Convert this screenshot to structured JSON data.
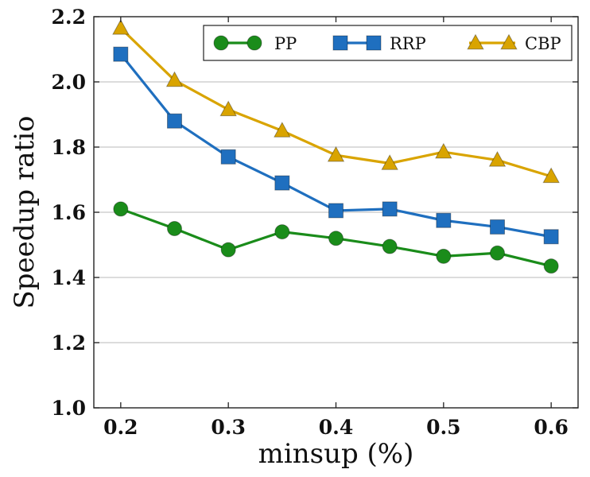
{
  "chart_data": {
    "type": "line",
    "title": "",
    "xlabel": "minsup (%)",
    "ylabel": "Speedup ratio",
    "x": [
      0.2,
      0.25,
      0.3,
      0.35,
      0.4,
      0.45,
      0.5,
      0.55,
      0.6
    ],
    "xlim": [
      0.175,
      0.625
    ],
    "ylim": [
      1.0,
      2.2
    ],
    "xticks": [
      0.2,
      0.3,
      0.4,
      0.5,
      0.6
    ],
    "xtick_labels": [
      "0.2",
      "0.3",
      "0.4",
      "0.5",
      "0.6"
    ],
    "yticks": [
      1.0,
      1.2,
      1.4,
      1.6,
      1.8,
      2.0,
      2.2
    ],
    "ytick_labels": [
      "1.0",
      "1.2",
      "1.4",
      "1.6",
      "1.8",
      "2.0",
      "2.2"
    ],
    "grid": "horizontal",
    "legend_position": "top",
    "series": [
      {
        "name": "PP",
        "color": "#1a8c1a",
        "marker": "circle",
        "values": [
          1.61,
          1.55,
          1.485,
          1.54,
          1.52,
          1.495,
          1.465,
          1.475,
          1.435
        ]
      },
      {
        "name": "RRP",
        "color": "#1f6fbf",
        "marker": "square",
        "values": [
          2.085,
          1.88,
          1.77,
          1.69,
          1.605,
          1.61,
          1.575,
          1.555,
          1.525
        ]
      },
      {
        "name": "CBP",
        "color": "#d9a400",
        "marker": "triangle",
        "values": [
          2.165,
          2.005,
          1.915,
          1.85,
          1.775,
          1.75,
          1.785,
          1.76,
          1.71
        ]
      }
    ]
  }
}
